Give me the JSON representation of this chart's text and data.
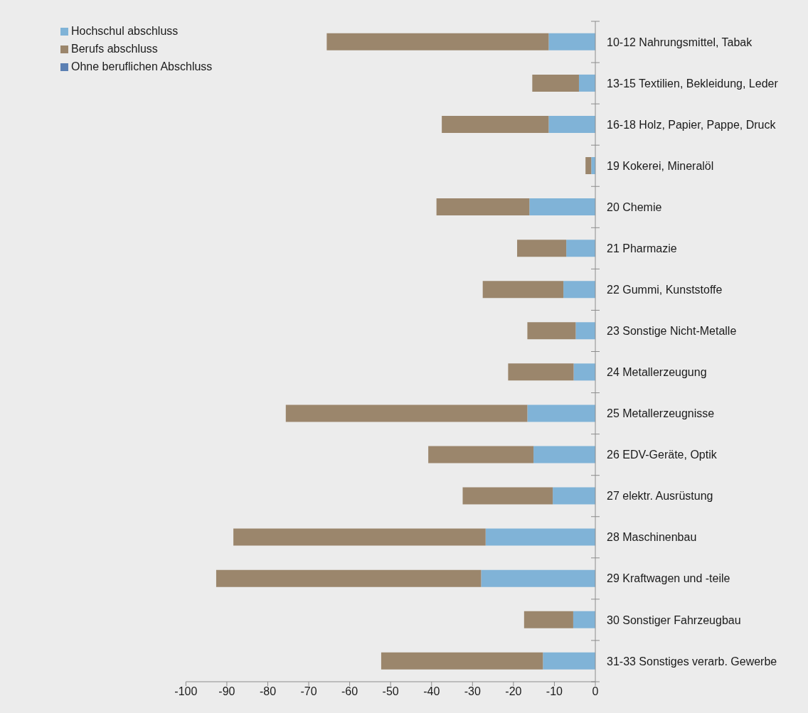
{
  "chart_data": {
    "type": "bar",
    "orientation": "horizontal",
    "stacked": true,
    "categories": [
      "10-12 Nahrungsmittel, Tabak",
      "13-15 Textilien, Bekleidung, Leder",
      "16-18 Holz, Papier, Pappe, Druck",
      "19 Kokerei, Mineralöl",
      "20 Chemie",
      "21 Pharmazie",
      "22 Gummi, Kunststoffe",
      "23 Sonstige Nicht-Metalle",
      "24 Metallerzeugung",
      "25 Metallerzeugnisse",
      "26 EDV-Geräte, Optik",
      "27 elektr. Ausrüstung",
      "28 Maschinenbau",
      "29 Kraftwagen und -teile",
      "30 Sonstiger Fahrzeugbau",
      "31-33 Sonstiges verarb. Gewerbe"
    ],
    "series": [
      {
        "name": "Hochschul abschluss",
        "color": "#80b3d7",
        "values": [
          -11.4,
          -4.0,
          -11.4,
          -1.0,
          -16.1,
          -7.1,
          -7.8,
          -4.8,
          -5.3,
          -16.6,
          -15.1,
          -10.4,
          -26.8,
          -27.9,
          -5.4,
          -12.8
        ]
      },
      {
        "name": "Berufs abschluss",
        "color": "#9b866c",
        "values": [
          -54.2,
          -11.4,
          -26.1,
          -1.4,
          -22.7,
          -12.0,
          -19.7,
          -11.8,
          -16.0,
          -59.0,
          -25.7,
          -22.0,
          -61.6,
          -64.7,
          -12.0,
          -39.5
        ]
      },
      {
        "name": "Ohne beruflichen Abschluss",
        "color": "#5b80b3",
        "values": [
          null,
          null,
          null,
          null,
          null,
          null,
          null,
          null,
          null,
          null,
          null,
          null,
          null,
          null,
          null,
          null
        ]
      }
    ],
    "xlim": [
      -100,
      0
    ],
    "xticks": [
      -100,
      -90,
      -80,
      -70,
      -60,
      -50,
      -40,
      -30,
      -20,
      -10,
      0
    ],
    "legend": "top left"
  }
}
